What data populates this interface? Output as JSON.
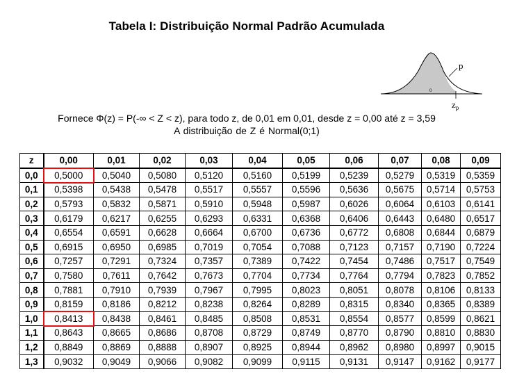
{
  "title": "Tabela I: Distribuição Normal Padrão Acumulada",
  "figure": {
    "p_label": "p",
    "z_label": "z",
    "z_sub": "p",
    "zero_label": "0"
  },
  "description": {
    "line1": "Fornece Φ(z) = P(-∞ < Z < z), para todo z, de 0,01 em 0,01, desde z = 0,00 até z = 3,59",
    "line2": "A distribuição de  Z  é  Normal(0;1)"
  },
  "table": {
    "headers": [
      "z",
      "0,00",
      "0,01",
      "0,02",
      "0,03",
      "0,04",
      "0,05",
      "0,06",
      "0,07",
      "0,08",
      "0,09"
    ],
    "rows": [
      {
        "z": "0,0",
        "values": [
          "0,5000",
          "0,5040",
          "0,5080",
          "0,5120",
          "0,5160",
          "0,5199",
          "0,5239",
          "0,5279",
          "0,5319",
          "0,5359"
        ]
      },
      {
        "z": "0,1",
        "values": [
          "0,5398",
          "0,5438",
          "0,5478",
          "0,5517",
          "0,5557",
          "0,5596",
          "0,5636",
          "0,5675",
          "0,5714",
          "0,5753"
        ]
      },
      {
        "z": "0,2",
        "values": [
          "0,5793",
          "0,5832",
          "0,5871",
          "0,5910",
          "0,5948",
          "0,5987",
          "0,6026",
          "0,6064",
          "0,6103",
          "0,6141"
        ]
      },
      {
        "z": "0,3",
        "values": [
          "0,6179",
          "0,6217",
          "0,6255",
          "0,6293",
          "0,6331",
          "0,6368",
          "0,6406",
          "0,6443",
          "0,6480",
          "0,6517"
        ]
      },
      {
        "z": "0,4",
        "values": [
          "0,6554",
          "0,6591",
          "0,6628",
          "0,6664",
          "0,6700",
          "0,6736",
          "0,6772",
          "0,6808",
          "0,6844",
          "0,6879"
        ]
      },
      {
        "z": "0,5",
        "values": [
          "0,6915",
          "0,6950",
          "0,6985",
          "0,7019",
          "0,7054",
          "0,7088",
          "0,7123",
          "0,7157",
          "0,7190",
          "0,7224"
        ]
      },
      {
        "z": "0,6",
        "values": [
          "0,7257",
          "0,7291",
          "0,7324",
          "0,7357",
          "0,7389",
          "0,7422",
          "0,7454",
          "0,7486",
          "0,7517",
          "0,7549"
        ]
      },
      {
        "z": "0,7",
        "values": [
          "0,7580",
          "0,7611",
          "0,7642",
          "0,7673",
          "0,7704",
          "0,7734",
          "0,7764",
          "0,7794",
          "0,7823",
          "0,7852"
        ]
      },
      {
        "z": "0,8",
        "values": [
          "0,7881",
          "0,7910",
          "0,7939",
          "0,7967",
          "0,7995",
          "0,8023",
          "0,8051",
          "0,8078",
          "0,8106",
          "0,8133"
        ]
      },
      {
        "z": "0,9",
        "values": [
          "0,8159",
          "0,8186",
          "0,8212",
          "0,8238",
          "0,8264",
          "0,8289",
          "0,8315",
          "0,8340",
          "0,8365",
          "0,8389"
        ]
      },
      {
        "z": "1,0",
        "values": [
          "0,8413",
          "0,8438",
          "0,8461",
          "0,8485",
          "0,8508",
          "0,8531",
          "0,8554",
          "0,8577",
          "0,8599",
          "0,8621"
        ]
      },
      {
        "z": "1,1",
        "values": [
          "0,8643",
          "0,8665",
          "0,8686",
          "0,8708",
          "0,8729",
          "0,8749",
          "0,8770",
          "0,8790",
          "0,8810",
          "0,8830"
        ]
      },
      {
        "z": "1,2",
        "values": [
          "0,8849",
          "0,8869",
          "0,8888",
          "0,8907",
          "0,8925",
          "0,8944",
          "0,8962",
          "0,8980",
          "0,8997",
          "0,9015"
        ]
      },
      {
        "z": "1,3",
        "values": [
          "0,9032",
          "0,9049",
          "0,9066",
          "0,9082",
          "0,9099",
          "0,9115",
          "0,9131",
          "0,9147",
          "0,9162",
          "0,9177"
        ]
      }
    ],
    "highlight_color": "#e11111"
  }
}
